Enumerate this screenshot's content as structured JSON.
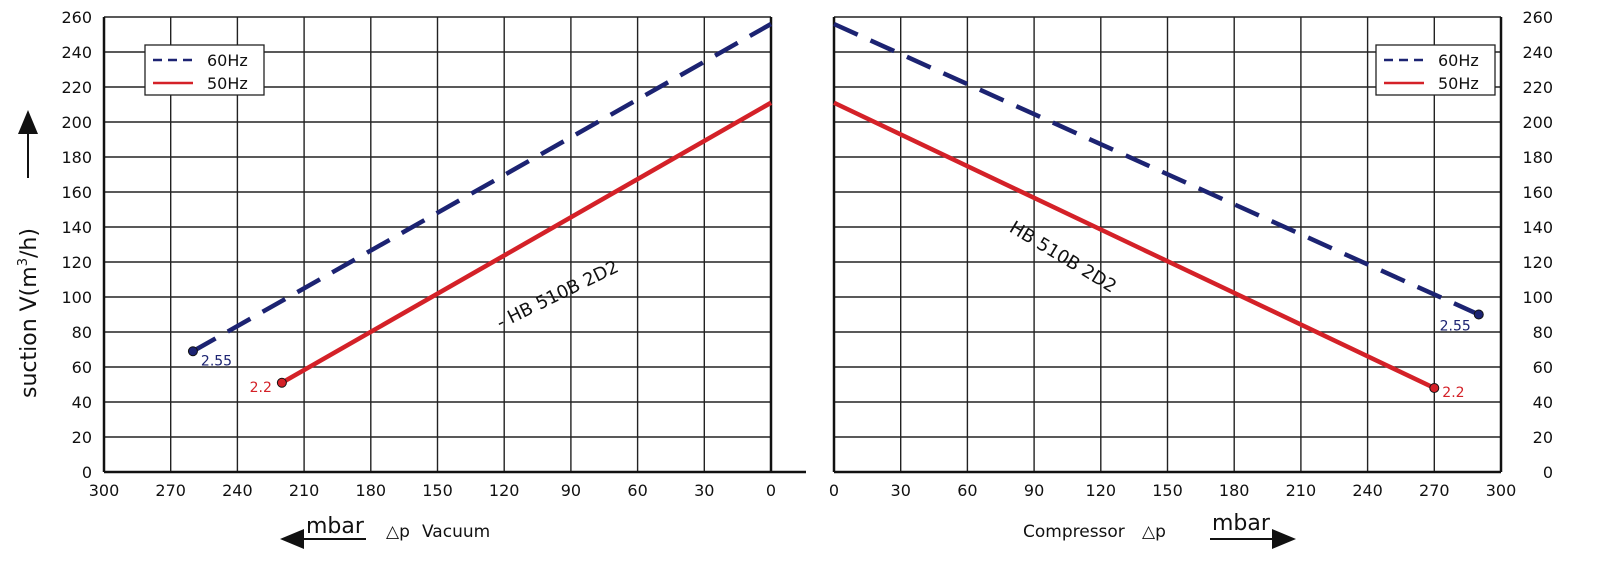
{
  "colors": {
    "hz60": "#1c2372",
    "hz50": "#d42128",
    "grid": "#222222"
  },
  "y_title_parts": [
    "suction V(m",
    "3",
    "/h)"
  ],
  "left_panel": {
    "unit": "mbar",
    "delta": "△p",
    "label": "Vacuum"
  },
  "right_panel": {
    "unit": "mbar",
    "delta": "△p",
    "label": "Compressor"
  },
  "chart_data": [
    {
      "type": "line",
      "panel": "vacuum",
      "x_reversed": true,
      "xlim": [
        0,
        300
      ],
      "ylim": [
        0,
        260
      ],
      "x_ticks": [
        300,
        270,
        240,
        210,
        180,
        150,
        120,
        90,
        60,
        30,
        0
      ],
      "y_ticks": [
        260,
        240,
        220,
        200,
        180,
        160,
        140,
        120,
        100,
        80,
        60,
        40,
        20,
        0
      ],
      "grid": true,
      "legend": {
        "position": "top-left",
        "entries": [
          "60Hz",
          "50Hz"
        ]
      },
      "annotation": "HB 510B 2D2",
      "series": [
        {
          "name": "60Hz",
          "style": "dashed",
          "x": [
            260,
            0
          ],
          "y": [
            69,
            256
          ],
          "end_label": "2.55"
        },
        {
          "name": "50Hz",
          "style": "solid",
          "x": [
            220,
            0
          ],
          "y": [
            51,
            211
          ],
          "end_label": "2.2"
        }
      ]
    },
    {
      "type": "line",
      "panel": "compressor",
      "x_reversed": false,
      "xlim": [
        0,
        300
      ],
      "ylim": [
        0,
        260
      ],
      "x_ticks": [
        0,
        30,
        60,
        90,
        120,
        150,
        180,
        210,
        240,
        270,
        300
      ],
      "y_ticks": [
        260,
        240,
        220,
        200,
        180,
        160,
        140,
        120,
        100,
        80,
        60,
        40,
        20,
        0
      ],
      "grid": true,
      "legend": {
        "position": "top-right",
        "entries": [
          "60Hz",
          "50Hz"
        ]
      },
      "annotation": "HB 510B 2D2",
      "series": [
        {
          "name": "60Hz",
          "style": "dashed",
          "x": [
            0,
            290
          ],
          "y": [
            256,
            90
          ],
          "end_label": "2.55"
        },
        {
          "name": "50Hz",
          "style": "solid",
          "x": [
            0,
            270
          ],
          "y": [
            211,
            48
          ],
          "end_label": "2.2"
        }
      ]
    }
  ]
}
